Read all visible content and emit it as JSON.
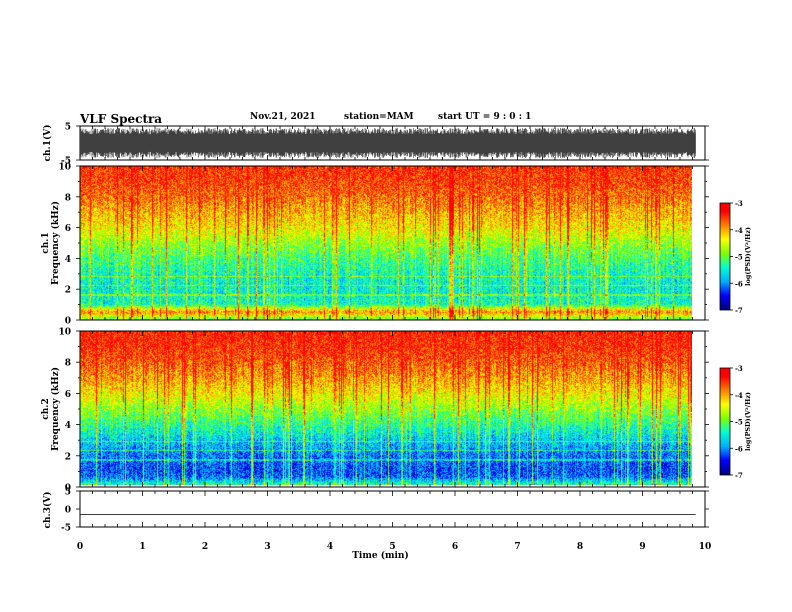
{
  "header": {
    "title": "VLF Spectra",
    "date": "Nov.21, 2021",
    "station": "station=MAM",
    "start_ut": "start UT =  9 : 0 : 1"
  },
  "colors": {
    "spectrogram_scale": [
      "#000080",
      "#0000ff",
      "#00b0ff",
      "#00ffd0",
      "#7fff00",
      "#ffff00",
      "#ff8000",
      "#ff0000",
      "#ffffff"
    ]
  },
  "chart_data": [
    {
      "type": "line",
      "id": "ch1-waveform",
      "ylabel": "ch.1(V)",
      "ylim": [
        -5,
        5
      ],
      "y_ticks": [
        "5",
        "-5"
      ],
      "xlim": [
        0,
        10
      ],
      "x_end": 9.85,
      "description_values": "dense VLF waveform, amplitude roughly ±4 V across whole interval"
    },
    {
      "type": "heatmap",
      "id": "ch1-spectrogram",
      "ylabel": "ch.1\nFrequency (kHz)",
      "ylabel_line1": "ch.1",
      "ylabel_line2": "Frequency (kHz)",
      "ylim": [
        0,
        10
      ],
      "y_ticks": [
        "0",
        "2",
        "4",
        "6",
        "8",
        "10"
      ],
      "xlim": [
        0,
        10
      ],
      "x_end": 9.85,
      "colorbar": {
        "label": "log(PSD)(V²/Hz)",
        "range": [
          -7,
          -3
        ],
        "ticks": [
          "-3",
          "-4",
          "-5",
          "-6",
          "-7"
        ]
      },
      "levels_by_frequency_kHz": [
        [
          0,
          -4.8
        ],
        [
          0.5,
          -3.6
        ],
        [
          1,
          -5.3
        ],
        [
          2,
          -5.4
        ],
        [
          3,
          -5.3
        ],
        [
          4,
          -5.0
        ],
        [
          5,
          -4.6
        ],
        [
          6,
          -4.1
        ],
        [
          7,
          -3.8
        ],
        [
          8,
          -3.5
        ],
        [
          9,
          -3.3
        ],
        [
          10,
          -3.2
        ]
      ]
    },
    {
      "type": "heatmap",
      "id": "ch2-spectrogram",
      "ylabel": "ch.2\nFrequency (kHz)",
      "ylabel_line1": "ch.2",
      "ylabel_line2": "Frequency (kHz)",
      "ylim": [
        0,
        10
      ],
      "y_ticks": [
        "0",
        "2",
        "4",
        "6",
        "8",
        "10"
      ],
      "xlim": [
        0,
        10
      ],
      "x_end": 9.85,
      "colorbar": {
        "label": "log(PSD)(V²/Hz)",
        "range": [
          -7,
          -3
        ],
        "ticks": [
          "-3",
          "-4",
          "-5",
          "-6",
          "-7"
        ]
      },
      "levels_by_frequency_kHz": [
        [
          0,
          -5.2
        ],
        [
          0.5,
          -6.1
        ],
        [
          1,
          -6.2
        ],
        [
          2,
          -6.0
        ],
        [
          3,
          -5.6
        ],
        [
          4,
          -5.1
        ],
        [
          5,
          -4.6
        ],
        [
          6,
          -4.1
        ],
        [
          7,
          -3.7
        ],
        [
          8,
          -3.4
        ],
        [
          9,
          -3.2
        ],
        [
          10,
          -3.1
        ]
      ]
    },
    {
      "type": "line",
      "id": "ch3-waveform",
      "ylabel": "ch.3(V)",
      "ylim": [
        -5,
        5
      ],
      "y_ticks": [
        "5",
        "0",
        "-5"
      ],
      "xlim": [
        0,
        10
      ],
      "x": [
        0,
        9.85
      ],
      "y": [
        -1.5,
        -1.5
      ],
      "xlabel": "Time (min)",
      "x_ticks": [
        "0",
        "1",
        "2",
        "3",
        "4",
        "5",
        "6",
        "7",
        "8",
        "9",
        "10"
      ]
    }
  ]
}
